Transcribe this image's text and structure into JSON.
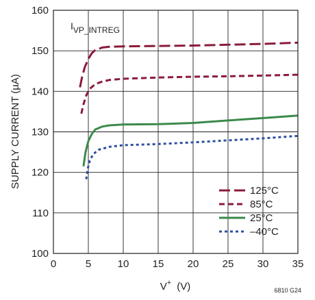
{
  "chart_data": {
    "type": "line",
    "annotation": {
      "main": "I",
      "sub": "VP_INTREG"
    },
    "xlabel": {
      "main": "V",
      "sup": "+",
      "unit": "(V)"
    },
    "ylabel": "SUPPLY CURRENT (µA)",
    "figure_id": "6810 G24",
    "xlim": [
      0,
      35
    ],
    "ylim": [
      100,
      160
    ],
    "xticks": [
      "0",
      "5",
      "10",
      "15",
      "20",
      "25",
      "30",
      "35"
    ],
    "yticks": [
      "100",
      "110",
      "120",
      "130",
      "140",
      "150",
      "160"
    ],
    "grid": true,
    "legend_position": "bottom-right",
    "series": [
      {
        "name": "125°C",
        "color": "#8b1a3a",
        "dash": "long-dash",
        "points": [
          [
            3.8,
            141
          ],
          [
            4.1,
            143.5
          ],
          [
            4.5,
            146
          ],
          [
            5,
            148
          ],
          [
            5.5,
            149.4
          ],
          [
            6,
            150.2
          ],
          [
            7,
            150.8
          ],
          [
            8,
            151
          ],
          [
            10,
            151.1
          ],
          [
            15,
            151.2
          ],
          [
            20,
            151.3
          ],
          [
            25,
            151.5
          ],
          [
            30,
            151.7
          ],
          [
            35,
            152
          ]
        ]
      },
      {
        "name": "85°C",
        "color": "#8b1a3a",
        "dash": "short-dash",
        "points": [
          [
            4.0,
            134.5
          ],
          [
            4.3,
            136.8
          ],
          [
            4.7,
            139
          ],
          [
            5.2,
            140.6
          ],
          [
            6,
            141.8
          ],
          [
            7,
            142.4
          ],
          [
            8,
            142.8
          ],
          [
            10,
            143.1
          ],
          [
            15,
            143.4
          ],
          [
            20,
            143.6
          ],
          [
            25,
            143.7
          ],
          [
            30,
            143.9
          ],
          [
            35,
            144.1
          ]
        ]
      },
      {
        "name": "25°C",
        "color": "#3a8a4a",
        "dash": "solid",
        "points": [
          [
            4.3,
            121.5
          ],
          [
            4.6,
            125
          ],
          [
            5,
            127.7
          ],
          [
            5.5,
            129.5
          ],
          [
            6,
            130.6
          ],
          [
            7,
            131.3
          ],
          [
            8,
            131.6
          ],
          [
            10,
            131.8
          ],
          [
            15,
            131.9
          ],
          [
            20,
            132.2
          ],
          [
            25,
            132.8
          ],
          [
            30,
            133.4
          ],
          [
            35,
            134
          ]
        ]
      },
      {
        "name": "–40°C",
        "color": "#2e4fa0",
        "dash": "dotted",
        "points": [
          [
            4.7,
            118.3
          ],
          [
            4.9,
            120.8
          ],
          [
            5.2,
            122.8
          ],
          [
            5.7,
            124.5
          ],
          [
            6.5,
            125.6
          ],
          [
            8,
            126.3
          ],
          [
            10,
            126.7
          ],
          [
            15,
            127
          ],
          [
            20,
            127.4
          ],
          [
            25,
            127.9
          ],
          [
            30,
            128.4
          ],
          [
            35,
            129
          ]
        ]
      }
    ]
  }
}
